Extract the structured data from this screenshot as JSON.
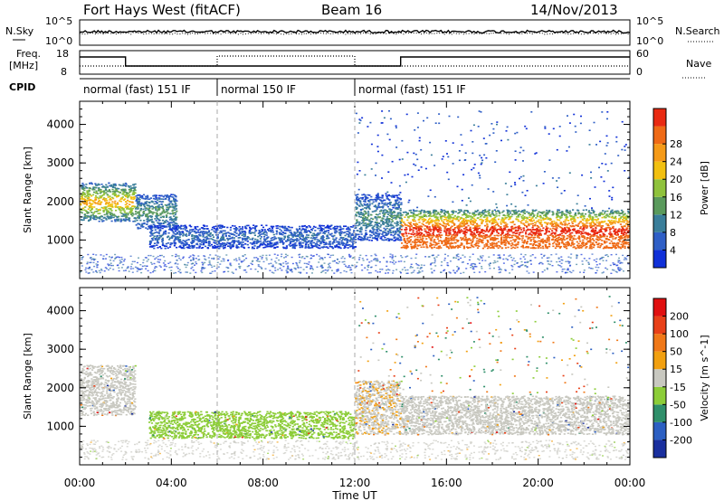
{
  "header": {
    "station": "Fort Hays West (fitACF)",
    "beam": "Beam 16",
    "date": "14/Nov/2013"
  },
  "noise_panel": {
    "left_label": "N.Sky",
    "right_label": "N.Search",
    "left_ticks": [
      "10^5",
      "10^0"
    ],
    "right_ticks": [
      "10^5",
      "10^0"
    ]
  },
  "freq_panel": {
    "left_label_1": "Freq.",
    "left_label_2": "[MHz]",
    "right_label": "Nave",
    "left_ticks": [
      "18",
      "8"
    ],
    "right_ticks": [
      "60",
      "0"
    ]
  },
  "cpid_panel": {
    "label": "CPID",
    "modes": [
      {
        "label": "normal (fast) 151 IF",
        "start": "00:00",
        "end": "06:00"
      },
      {
        "label": "normal 150 IF",
        "start": "06:00",
        "end": "12:00"
      },
      {
        "label": "normal (fast) 151 IF",
        "start": "12:00",
        "end": "24:00"
      }
    ]
  },
  "x_axis": {
    "title": "Time UT",
    "ticks": [
      "00:00",
      "04:00",
      "08:00",
      "12:00",
      "16:00",
      "20:00",
      "00:00"
    ]
  },
  "chart_data": [
    {
      "type": "heatmap",
      "name": "power",
      "xlabel": "Time UT",
      "ylabel": "Slant Range [km]",
      "xlim": [
        0,
        24
      ],
      "ylim": [
        0,
        4600
      ],
      "yticks": [
        "1000",
        "2000",
        "3000",
        "4000"
      ],
      "colorbar": {
        "title": "Power [dB]",
        "range": [
          0,
          32
        ],
        "ticks": [
          "4",
          "8",
          "12",
          "16",
          "20",
          "24",
          "28"
        ],
        "colors": [
          "#1030d8",
          "#2f5fc6",
          "#3a7e9a",
          "#5a9a5c",
          "#8fc23c",
          "#f2c010",
          "#f59a18",
          "#ef6a16",
          "#e92a12"
        ]
      },
      "echo_regions": [
        {
          "t": [
            0.0,
            2.4
          ],
          "range_km": [
            1500,
            2500
          ],
          "power_db": 18
        },
        {
          "t": [
            2.4,
            4.2
          ],
          "range_km": [
            1300,
            2200
          ],
          "power_db": 10
        },
        {
          "t": [
            3.0,
            12.0
          ],
          "range_km": [
            800,
            1400
          ],
          "power_db": 6
        },
        {
          "t": [
            12.0,
            14.0
          ],
          "range_km": [
            1000,
            2200
          ],
          "power_db": 9
        },
        {
          "t": [
            14.0,
            24.0
          ],
          "range_km": [
            800,
            1800
          ],
          "power_db": 24
        }
      ]
    },
    {
      "type": "heatmap",
      "name": "velocity",
      "xlabel": "Time UT",
      "ylabel": "Slant Range [km]",
      "xlim": [
        0,
        24
      ],
      "ylim": [
        0,
        4600
      ],
      "yticks": [
        "1000",
        "2000",
        "3000",
        "4000"
      ],
      "colorbar": {
        "title": "Velocity [m s^-1]",
        "range": [
          -250,
          250
        ],
        "ticks": [
          "200",
          "100",
          "50",
          "15",
          "-15",
          "-50",
          "-100",
          "-200"
        ],
        "colors": [
          "#1a2f9e",
          "#2c5fc2",
          "#2f8f6a",
          "#8ccd38",
          "#c8c8c0",
          "#f2a010",
          "#f07818",
          "#e84018",
          "#e01010"
        ]
      },
      "echo_regions": [
        {
          "t": [
            0.0,
            2.4
          ],
          "range_km": [
            1300,
            2600
          ],
          "velocity": 0
        },
        {
          "t": [
            3.0,
            12.0
          ],
          "range_km": [
            700,
            1400
          ],
          "velocity": -60
        },
        {
          "t": [
            12.0,
            14.0
          ],
          "range_km": [
            800,
            2200
          ],
          "velocity": 20
        },
        {
          "t": [
            14.0,
            24.0
          ],
          "range_km": [
            800,
            1800
          ],
          "velocity": 0
        }
      ]
    }
  ]
}
